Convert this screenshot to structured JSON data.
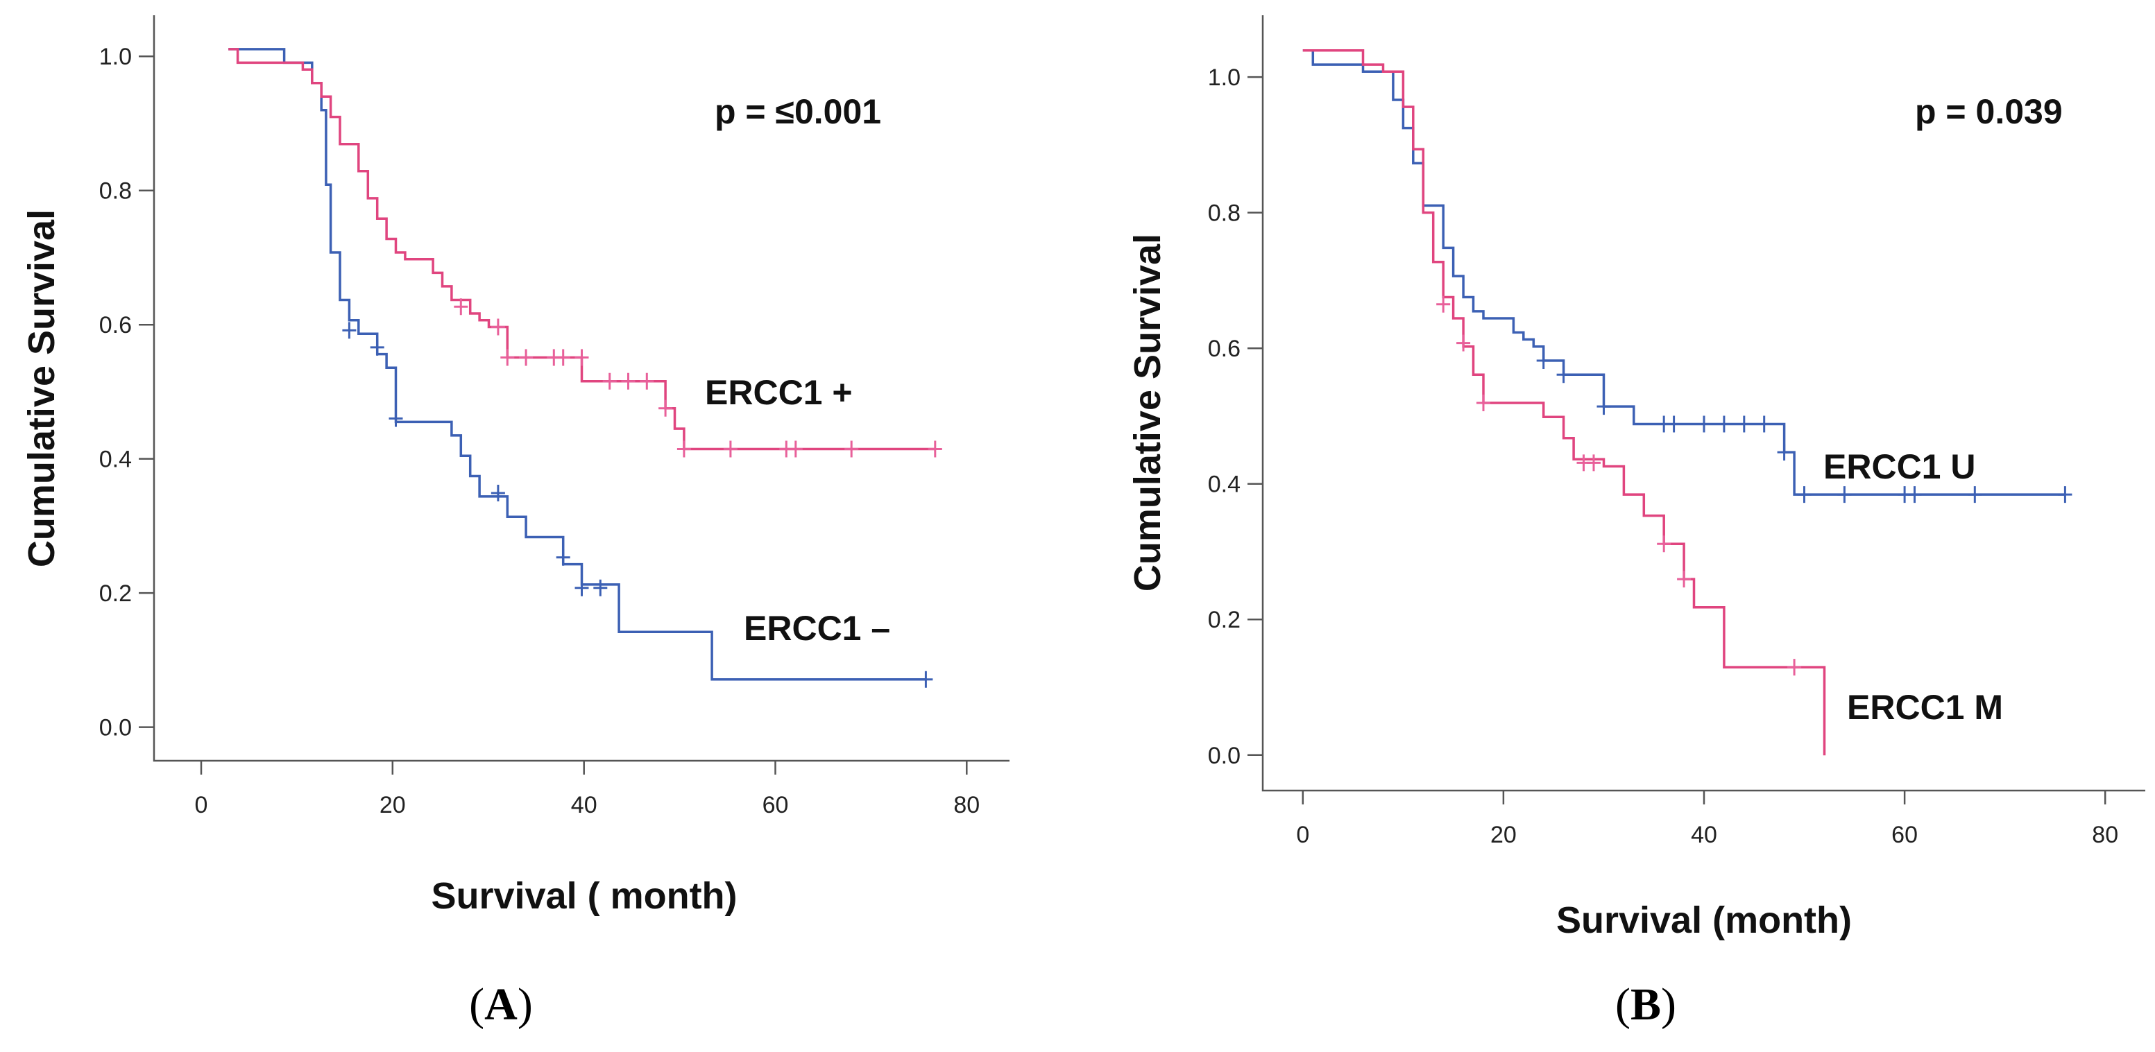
{
  "colors": {
    "blue": "#3c60b4",
    "pink": "#e0457f",
    "censor_pink": "#e8609a"
  },
  "chart_data": [
    {
      "type": "line",
      "subtype": "kaplan-meier",
      "panel": "(A)",
      "panel_letter": "A",
      "xlabel": "Survival ( month)",
      "ylabel": "Cumulative Survival",
      "xlim": [
        -8,
        84
      ],
      "ylim": [
        -0.05,
        1.05
      ],
      "xticks": [
        0,
        20,
        40,
        60,
        80
      ],
      "yticks": [
        "0.0",
        "0.2",
        "0.4",
        "0.6",
        "0.8",
        "1.0"
      ],
      "annotation": "p = ≤0.001",
      "series": [
        {
          "name": "ERCC1 –",
          "label": "ERCC1 –",
          "color": "blue",
          "steps": [
            [
              0,
              1.0
            ],
            [
              6,
              0.98
            ],
            [
              9,
              0.95
            ],
            [
              10,
              0.91
            ],
            [
              10.5,
              0.8
            ],
            [
              11,
              0.7
            ],
            [
              12,
              0.63
            ],
            [
              13,
              0.6
            ],
            [
              14,
              0.58
            ],
            [
              16,
              0.55
            ],
            [
              17,
              0.53
            ],
            [
              18,
              0.45
            ],
            [
              24,
              0.43
            ],
            [
              25,
              0.4
            ],
            [
              26,
              0.37
            ],
            [
              27,
              0.34
            ],
            [
              29,
              0.34
            ],
            [
              30,
              0.31
            ],
            [
              32,
              0.28
            ],
            [
              36,
              0.24
            ],
            [
              38,
              0.21
            ],
            [
              42,
              0.14
            ],
            [
              52,
              0.07
            ],
            [
              75,
              0.07
            ]
          ],
          "censors": [
            [
              13,
              0.585
            ],
            [
              16,
              0.56
            ],
            [
              18,
              0.455
            ],
            [
              29,
              0.345
            ],
            [
              36,
              0.25
            ],
            [
              38,
              0.205
            ],
            [
              40,
              0.205
            ],
            [
              75,
              0.07
            ]
          ]
        },
        {
          "name": "ERCC1 +",
          "label": "ERCC1 +",
          "color": "pink",
          "steps": [
            [
              0,
              1.0
            ],
            [
              1,
              0.98
            ],
            [
              8,
              0.97
            ],
            [
              9,
              0.95
            ],
            [
              10,
              0.93
            ],
            [
              11,
              0.9
            ],
            [
              12,
              0.86
            ],
            [
              14,
              0.82
            ],
            [
              15,
              0.78
            ],
            [
              16,
              0.75
            ],
            [
              17,
              0.72
            ],
            [
              18,
              0.7
            ],
            [
              19,
              0.69
            ],
            [
              22,
              0.67
            ],
            [
              23,
              0.65
            ],
            [
              24,
              0.63
            ],
            [
              26,
              0.61
            ],
            [
              27,
              0.6
            ],
            [
              28,
              0.59
            ],
            [
              30,
              0.545
            ],
            [
              38,
              0.51
            ],
            [
              47,
              0.47
            ],
            [
              48,
              0.44
            ],
            [
              49,
              0.41
            ],
            [
              76,
              0.41
            ]
          ],
          "censors": [
            [
              25,
              0.62
            ],
            [
              29,
              0.59
            ],
            [
              30,
              0.545
            ],
            [
              32,
              0.545
            ],
            [
              35,
              0.545
            ],
            [
              36,
              0.545
            ],
            [
              38,
              0.545
            ],
            [
              41,
              0.51
            ],
            [
              43,
              0.51
            ],
            [
              45,
              0.51
            ],
            [
              47,
              0.47
            ],
            [
              49,
              0.41
            ],
            [
              54,
              0.41
            ],
            [
              60,
              0.41
            ],
            [
              61,
              0.41
            ],
            [
              67,
              0.41
            ],
            [
              76,
              0.41
            ]
          ]
        }
      ]
    },
    {
      "type": "line",
      "subtype": "kaplan-meier",
      "panel": "(B)",
      "panel_letter": "B",
      "xlabel": "Survival (month)",
      "ylabel": "Cumulative Survival",
      "xlim": [
        -4,
        84
      ],
      "ylim": [
        -0.05,
        1.05
      ],
      "xticks": [
        0,
        20,
        40,
        60,
        80
      ],
      "yticks": [
        "0.0",
        "0.2",
        "0.4",
        "0.6",
        "0.8",
        "1.0"
      ],
      "annotation": "p = 0.039",
      "series": [
        {
          "name": "ERCC1 U",
          "label": "ERCC1 U",
          "color": "blue",
          "steps": [
            [
              0,
              1.0
            ],
            [
              1,
              0.98
            ],
            [
              6,
              0.97
            ],
            [
              9,
              0.93
            ],
            [
              10,
              0.89
            ],
            [
              11,
              0.84
            ],
            [
              12,
              0.78
            ],
            [
              14,
              0.72
            ],
            [
              15,
              0.68
            ],
            [
              16,
              0.65
            ],
            [
              17,
              0.63
            ],
            [
              18,
              0.62
            ],
            [
              21,
              0.6
            ],
            [
              22,
              0.59
            ],
            [
              23,
              0.58
            ],
            [
              24,
              0.56
            ],
            [
              26,
              0.54
            ],
            [
              30,
              0.495
            ],
            [
              33,
              0.47
            ],
            [
              48,
              0.43
            ],
            [
              49,
              0.37
            ],
            [
              76,
              0.37
            ]
          ],
          "censors": [
            [
              24,
              0.56
            ],
            [
              26,
              0.54
            ],
            [
              30,
              0.495
            ],
            [
              36,
              0.47
            ],
            [
              37,
              0.47
            ],
            [
              40,
              0.47
            ],
            [
              42,
              0.47
            ],
            [
              44,
              0.47
            ],
            [
              46,
              0.47
            ],
            [
              48,
              0.43
            ],
            [
              50,
              0.37
            ],
            [
              54,
              0.37
            ],
            [
              60,
              0.37
            ],
            [
              61,
              0.37
            ],
            [
              67,
              0.37
            ],
            [
              76,
              0.37
            ]
          ]
        },
        {
          "name": "ERCC1 M",
          "label": "ERCC1 M",
          "color": "pink",
          "steps": [
            [
              0,
              1.0
            ],
            [
              6,
              0.98
            ],
            [
              8,
              0.97
            ],
            [
              10,
              0.92
            ],
            [
              11,
              0.86
            ],
            [
              12,
              0.77
            ],
            [
              13,
              0.7
            ],
            [
              14,
              0.65
            ],
            [
              15,
              0.62
            ],
            [
              16,
              0.58
            ],
            [
              17,
              0.54
            ],
            [
              18,
              0.5
            ],
            [
              24,
              0.48
            ],
            [
              26,
              0.45
            ],
            [
              27,
              0.42
            ],
            [
              30,
              0.41
            ],
            [
              32,
              0.37
            ],
            [
              34,
              0.34
            ],
            [
              36,
              0.3
            ],
            [
              38,
              0.25
            ],
            [
              39,
              0.21
            ],
            [
              42,
              0.125
            ],
            [
              52,
              0.125
            ],
            [
              52,
              0.0
            ]
          ],
          "censors": [
            [
              14,
              0.64
            ],
            [
              16,
              0.585
            ],
            [
              18,
              0.5
            ],
            [
              28,
              0.415
            ],
            [
              29,
              0.415
            ],
            [
              36,
              0.3
            ],
            [
              38,
              0.25
            ],
            [
              49,
              0.125
            ]
          ]
        }
      ]
    }
  ]
}
